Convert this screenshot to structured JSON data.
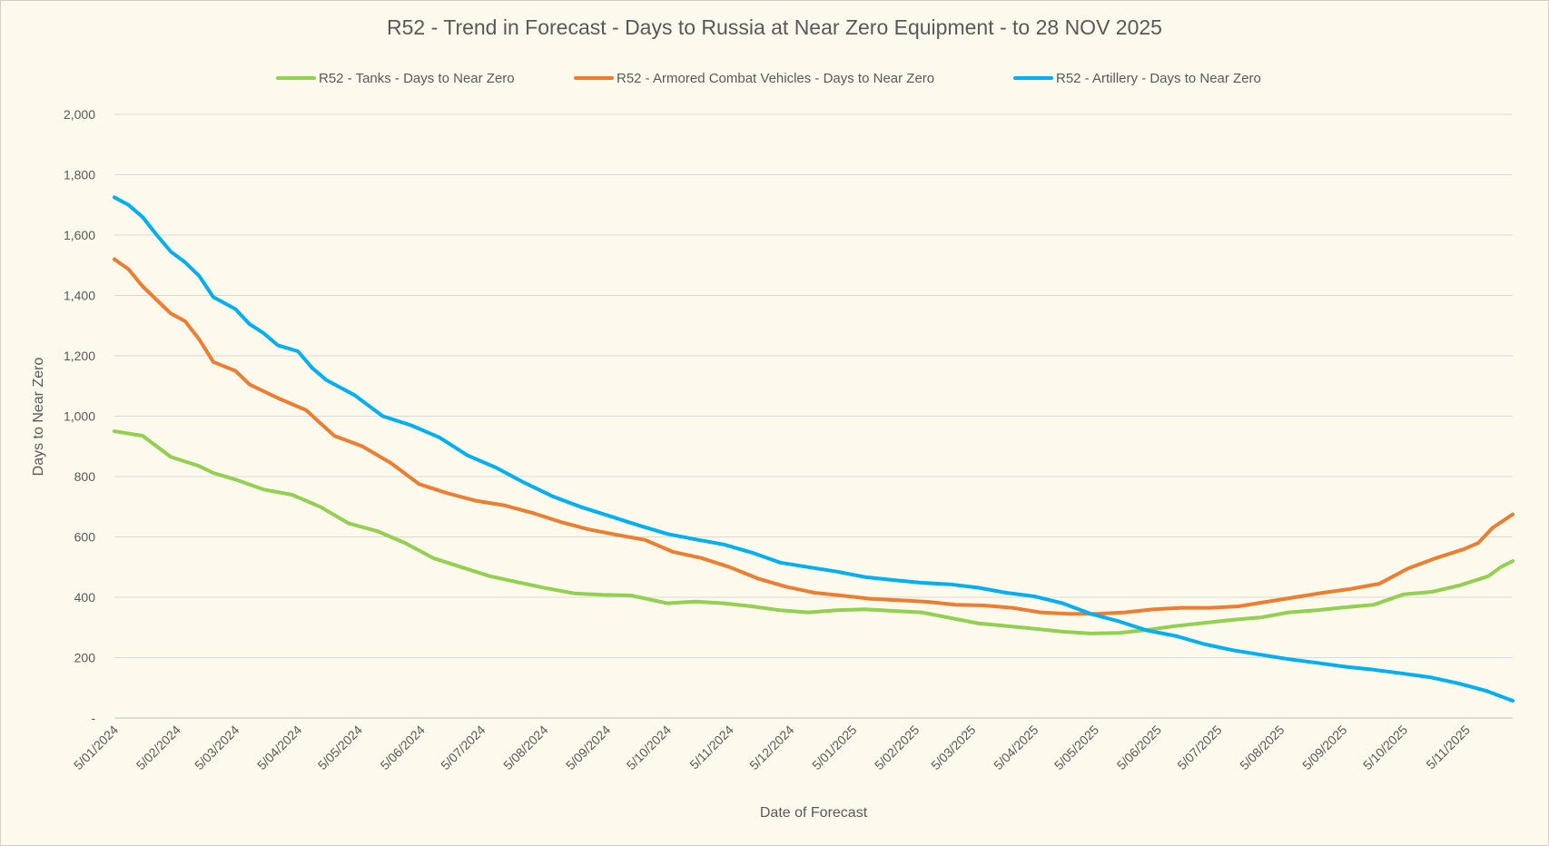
{
  "chart_data": {
    "type": "line",
    "title": "R52 - Trend in Forecast - Days to Russia at Near Zero Equipment - to 28 NOV 2025",
    "xlabel": "Date of Forecast",
    "ylabel": "Days to Near Zero",
    "ylim": [
      0,
      2000
    ],
    "y_ticks": [
      0,
      200,
      400,
      600,
      800,
      1000,
      1200,
      1400,
      1600,
      1800,
      2000
    ],
    "y_tick_labels": [
      "-",
      "200",
      "400",
      "600",
      "800",
      "1,000",
      "1,200",
      "1,400",
      "1,600",
      "1,800",
      "2,000"
    ],
    "x_tick_labels": [
      "5/01/2024",
      "5/02/2024",
      "5/03/2024",
      "5/04/2024",
      "5/05/2024",
      "5/06/2024",
      "5/07/2024",
      "5/08/2024",
      "5/09/2024",
      "5/10/2024",
      "5/11/2024",
      "5/12/2024",
      "5/01/2025",
      "5/02/2025",
      "5/03/2025",
      "5/04/2025",
      "5/05/2025",
      "5/06/2025",
      "5/07/2025",
      "5/08/2025",
      "5/09/2025",
      "5/10/2025",
      "5/11/2025"
    ],
    "x_range": [
      "5/01/2024",
      "28/11/2025"
    ],
    "grid": true,
    "legend_position": "top",
    "series": [
      {
        "name": "R52 - Tanks - Days to Near Zero",
        "color": "#92d050",
        "points": [
          [
            "5/01/2024",
            950
          ],
          [
            "19/01/2024",
            935
          ],
          [
            "2/02/2024",
            865
          ],
          [
            "16/02/2024",
            835
          ],
          [
            "23/02/2024",
            812
          ],
          [
            "5/03/2024",
            790
          ],
          [
            "19/03/2024",
            757
          ],
          [
            "2/04/2024",
            740
          ],
          [
            "16/04/2024",
            700
          ],
          [
            "30/04/2024",
            645
          ],
          [
            "14/05/2024",
            620
          ],
          [
            "28/05/2024",
            580
          ],
          [
            "11/06/2024",
            530
          ],
          [
            "25/06/2024",
            500
          ],
          [
            "9/07/2024",
            470
          ],
          [
            "23/07/2024",
            450
          ],
          [
            "6/08/2024",
            430
          ],
          [
            "20/08/2024",
            413
          ],
          [
            "3/09/2024",
            408
          ],
          [
            "17/09/2024",
            406
          ],
          [
            "5/10/2024",
            380
          ],
          [
            "19/10/2024",
            386
          ],
          [
            "2/11/2024",
            380
          ],
          [
            "16/11/2024",
            370
          ],
          [
            "30/11/2024",
            357
          ],
          [
            "14/12/2024",
            350
          ],
          [
            "28/12/2024",
            357
          ],
          [
            "11/01/2025",
            360
          ],
          [
            "25/01/2025",
            355
          ],
          [
            "8/02/2025",
            350
          ],
          [
            "22/02/2025",
            332
          ],
          [
            "8/03/2025",
            314
          ],
          [
            "22/03/2025",
            305
          ],
          [
            "5/04/2025",
            296
          ],
          [
            "19/04/2025",
            286
          ],
          [
            "3/05/2025",
            280
          ],
          [
            "17/05/2025",
            282
          ],
          [
            "31/05/2025",
            292
          ],
          [
            "14/06/2025",
            305
          ],
          [
            "28/06/2025",
            315
          ],
          [
            "12/07/2025",
            325
          ],
          [
            "26/07/2025",
            333
          ],
          [
            "9/08/2025",
            350
          ],
          [
            "23/08/2025",
            357
          ],
          [
            "6/09/2025",
            367
          ],
          [
            "20/09/2025",
            375
          ],
          [
            "5/10/2025",
            410
          ],
          [
            "19/10/2025",
            418
          ],
          [
            "2/11/2025",
            440
          ],
          [
            "16/11/2025",
            470
          ],
          [
            "22/11/2025",
            500
          ],
          [
            "28/11/2025",
            520
          ]
        ]
      },
      {
        "name": "R52 - Armored Combat Vehicles - Days to Near Zero",
        "color": "#ed7d31",
        "points": [
          [
            "5/01/2024",
            1520
          ],
          [
            "12/01/2024",
            1487
          ],
          [
            "19/01/2024",
            1430
          ],
          [
            "2/02/2024",
            1340
          ],
          [
            "9/02/2024",
            1315
          ],
          [
            "16/02/2024",
            1255
          ],
          [
            "23/02/2024",
            1180
          ],
          [
            "5/03/2024",
            1150
          ],
          [
            "12/03/2024",
            1105
          ],
          [
            "26/03/2024",
            1060
          ],
          [
            "9/04/2024",
            1020
          ],
          [
            "23/04/2024",
            935
          ],
          [
            "7/05/2024",
            900
          ],
          [
            "21/05/2024",
            845
          ],
          [
            "4/06/2024",
            775
          ],
          [
            "18/06/2024",
            745
          ],
          [
            "2/07/2024",
            720
          ],
          [
            "16/07/2024",
            705
          ],
          [
            "30/07/2024",
            680
          ],
          [
            "13/08/2024",
            650
          ],
          [
            "27/08/2024",
            625
          ],
          [
            "10/09/2024",
            607
          ],
          [
            "24/09/2024",
            590
          ],
          [
            "8/10/2024",
            550
          ],
          [
            "22/10/2024",
            530
          ],
          [
            "5/11/2024",
            500
          ],
          [
            "19/11/2024",
            462
          ],
          [
            "3/12/2024",
            435
          ],
          [
            "17/12/2024",
            415
          ],
          [
            "31/12/2024",
            405
          ],
          [
            "14/01/2025",
            395
          ],
          [
            "28/01/2025",
            390
          ],
          [
            "11/02/2025",
            385
          ],
          [
            "25/02/2025",
            375
          ],
          [
            "11/03/2025",
            373
          ],
          [
            "25/03/2025",
            365
          ],
          [
            "8/04/2025",
            350
          ],
          [
            "22/04/2025",
            345
          ],
          [
            "6/05/2025",
            345
          ],
          [
            "20/05/2025",
            350
          ],
          [
            "3/06/2025",
            360
          ],
          [
            "17/06/2025",
            365
          ],
          [
            "1/07/2025",
            365
          ],
          [
            "15/07/2025",
            370
          ],
          [
            "29/07/2025",
            385
          ],
          [
            "12/08/2025",
            400
          ],
          [
            "26/08/2025",
            415
          ],
          [
            "9/09/2025",
            428
          ],
          [
            "23/09/2025",
            445
          ],
          [
            "7/10/2025",
            495
          ],
          [
            "21/10/2025",
            530
          ],
          [
            "4/11/2025",
            560
          ],
          [
            "11/11/2025",
            580
          ],
          [
            "18/11/2025",
            630
          ],
          [
            "28/11/2025",
            675
          ]
        ]
      },
      {
        "name": "R52 - Artillery - Days to Near Zero",
        "color": "#00b0f0",
        "points": [
          [
            "5/01/2024",
            1725
          ],
          [
            "12/01/2024",
            1700
          ],
          [
            "19/01/2024",
            1660
          ],
          [
            "26/01/2024",
            1600
          ],
          [
            "2/02/2024",
            1545
          ],
          [
            "9/02/2024",
            1510
          ],
          [
            "16/02/2024",
            1465
          ],
          [
            "23/02/2024",
            1395
          ],
          [
            "5/03/2024",
            1355
          ],
          [
            "12/03/2024",
            1305
          ],
          [
            "19/03/2024",
            1275
          ],
          [
            "26/03/2024",
            1235
          ],
          [
            "5/04/2024",
            1215
          ],
          [
            "12/04/2024",
            1160
          ],
          [
            "19/04/2024",
            1120
          ],
          [
            "3/05/2024",
            1070
          ],
          [
            "17/05/2024",
            1000
          ],
          [
            "31/05/2024",
            970
          ],
          [
            "14/06/2024",
            930
          ],
          [
            "28/06/2024",
            870
          ],
          [
            "12/07/2024",
            830
          ],
          [
            "26/07/2024",
            780
          ],
          [
            "9/08/2024",
            735
          ],
          [
            "23/08/2024",
            700
          ],
          [
            "6/09/2024",
            670
          ],
          [
            "20/09/2024",
            640
          ],
          [
            "5/10/2024",
            610
          ],
          [
            "19/10/2024",
            592
          ],
          [
            "2/11/2024",
            575
          ],
          [
            "16/11/2024",
            548
          ],
          [
            "30/11/2024",
            515
          ],
          [
            "14/12/2024",
            500
          ],
          [
            "28/12/2024",
            485
          ],
          [
            "11/01/2025",
            467
          ],
          [
            "25/01/2025",
            457
          ],
          [
            "8/02/2025",
            448
          ],
          [
            "22/02/2025",
            443
          ],
          [
            "8/03/2025",
            432
          ],
          [
            "22/03/2025",
            415
          ],
          [
            "5/04/2025",
            403
          ],
          [
            "19/04/2025",
            380
          ],
          [
            "3/05/2025",
            345
          ],
          [
            "17/05/2025",
            320
          ],
          [
            "31/05/2025",
            290
          ],
          [
            "14/06/2025",
            272
          ],
          [
            "28/06/2025",
            245
          ],
          [
            "12/07/2025",
            225
          ],
          [
            "26/07/2025",
            210
          ],
          [
            "9/08/2025",
            195
          ],
          [
            "23/08/2025",
            183
          ],
          [
            "6/09/2025",
            170
          ],
          [
            "20/09/2025",
            160
          ],
          [
            "4/10/2025",
            148
          ],
          [
            "18/10/2025",
            135
          ],
          [
            "1/11/2025",
            115
          ],
          [
            "15/11/2025",
            90
          ],
          [
            "28/11/2025",
            57
          ]
        ]
      }
    ]
  }
}
